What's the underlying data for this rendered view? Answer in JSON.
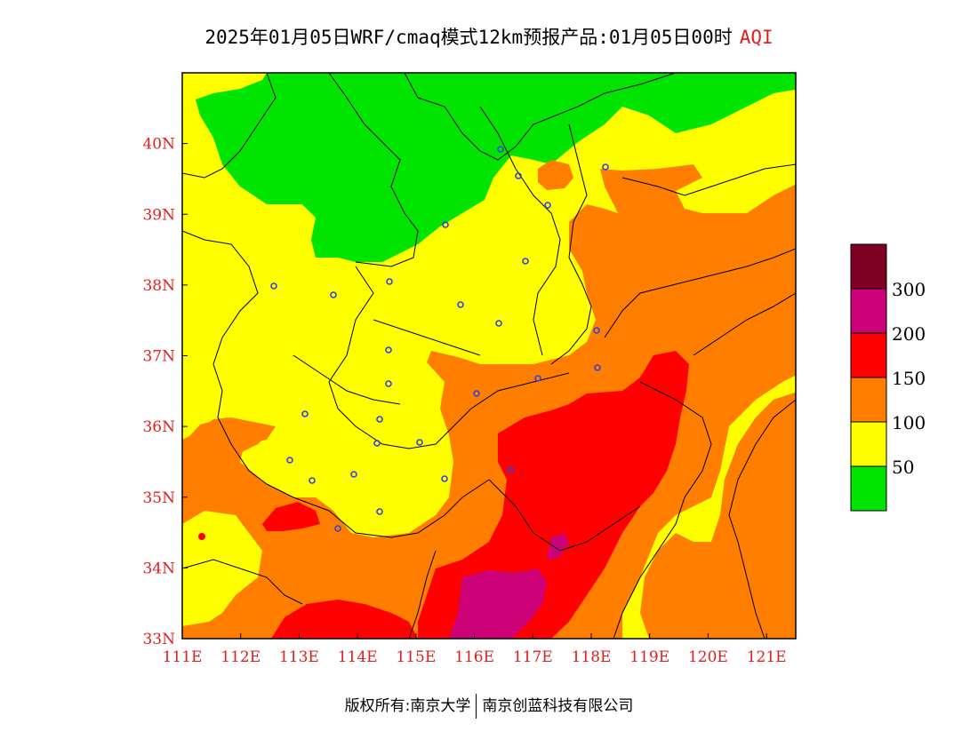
{
  "title": {
    "text": "2025年01月05日WRF/cmaq模式12km预报产品:01月05日00时",
    "variable": "AQI"
  },
  "map": {
    "lon_range": [
      111,
      121.5
    ],
    "lat_range": [
      33,
      41
    ],
    "lon_ticks": [
      "111E",
      "112E",
      "113E",
      "114E",
      "115E",
      "116E",
      "117E",
      "118E",
      "119E",
      "120E",
      "121E"
    ],
    "lat_ticks": [
      "33N",
      "34N",
      "35N",
      "36N",
      "37N",
      "38N",
      "39N",
      "40N"
    ]
  },
  "legend": {
    "labels": [
      "50",
      "100",
      "150",
      "200",
      "300"
    ],
    "colors": [
      "#00e400",
      "#ffff00",
      "#ff7e00",
      "#ff0000",
      "#cc0077",
      "#7e0023"
    ]
  },
  "footer": {
    "left": "版权所有:南京大学",
    "right": "南京创蓝科技有限公司"
  }
}
